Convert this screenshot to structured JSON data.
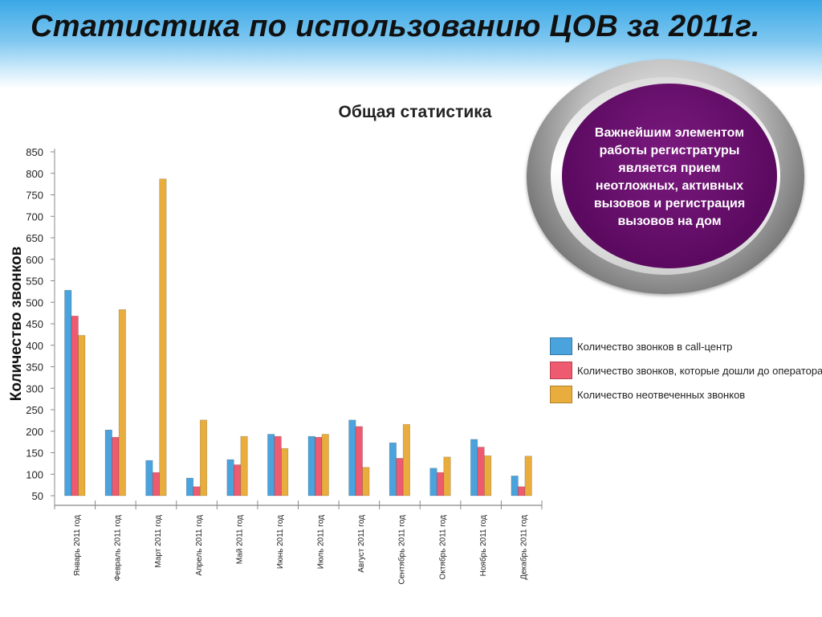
{
  "header": {
    "title": "Статистика по использованию ЦОВ за 2011г."
  },
  "badge": {
    "text": "Важнейшим элементом работы регистратуры является прием неотложных, активных вызовов и регистрация вызовов на дом"
  },
  "colors": {
    "series_1": "#4aa3dc",
    "series_2": "#ee5a6f",
    "series_3": "#e8ad3c",
    "badge": "#5b0a60"
  },
  "chart_data": {
    "type": "bar",
    "title": "Общая статистика",
    "xlabel": "",
    "ylabel": "Количество звонков",
    "ylim": [
      50,
      850
    ],
    "yticks": [
      50,
      100,
      150,
      200,
      250,
      300,
      350,
      400,
      450,
      500,
      550,
      600,
      650,
      700,
      750,
      800,
      850
    ],
    "grid": false,
    "legend_position": "right",
    "categories": [
      "Январь 2011 год",
      "Февраль 2011 год",
      "Март 2011 год",
      "Апрель 2011 год",
      "Май 2011 год",
      "Июнь 2011 год",
      "Июль 2011 год",
      "Август 2011 год",
      "Сентябрь 2011 год",
      "Октябрь 2011 год",
      "Ноябрь 2011 год",
      "Декабрь 2011 год"
    ],
    "series": [
      {
        "name": "Количество звонков в call-центр",
        "color": "#4aa3dc",
        "values": [
          528,
          203,
          132,
          91,
          134,
          193,
          188,
          226,
          173,
          114,
          181,
          96
        ]
      },
      {
        "name": "Количество звонков, которые дошли до оператора",
        "color": "#ee5a6f",
        "values": [
          468,
          186,
          104,
          71,
          122,
          188,
          186,
          211,
          137,
          104,
          163,
          71
        ]
      },
      {
        "name": "Количество неотвеченных звонков",
        "color": "#e8ad3c",
        "values": [
          423,
          483,
          787,
          226,
          188,
          160,
          193,
          116,
          216,
          140,
          143,
          142
        ]
      }
    ]
  }
}
